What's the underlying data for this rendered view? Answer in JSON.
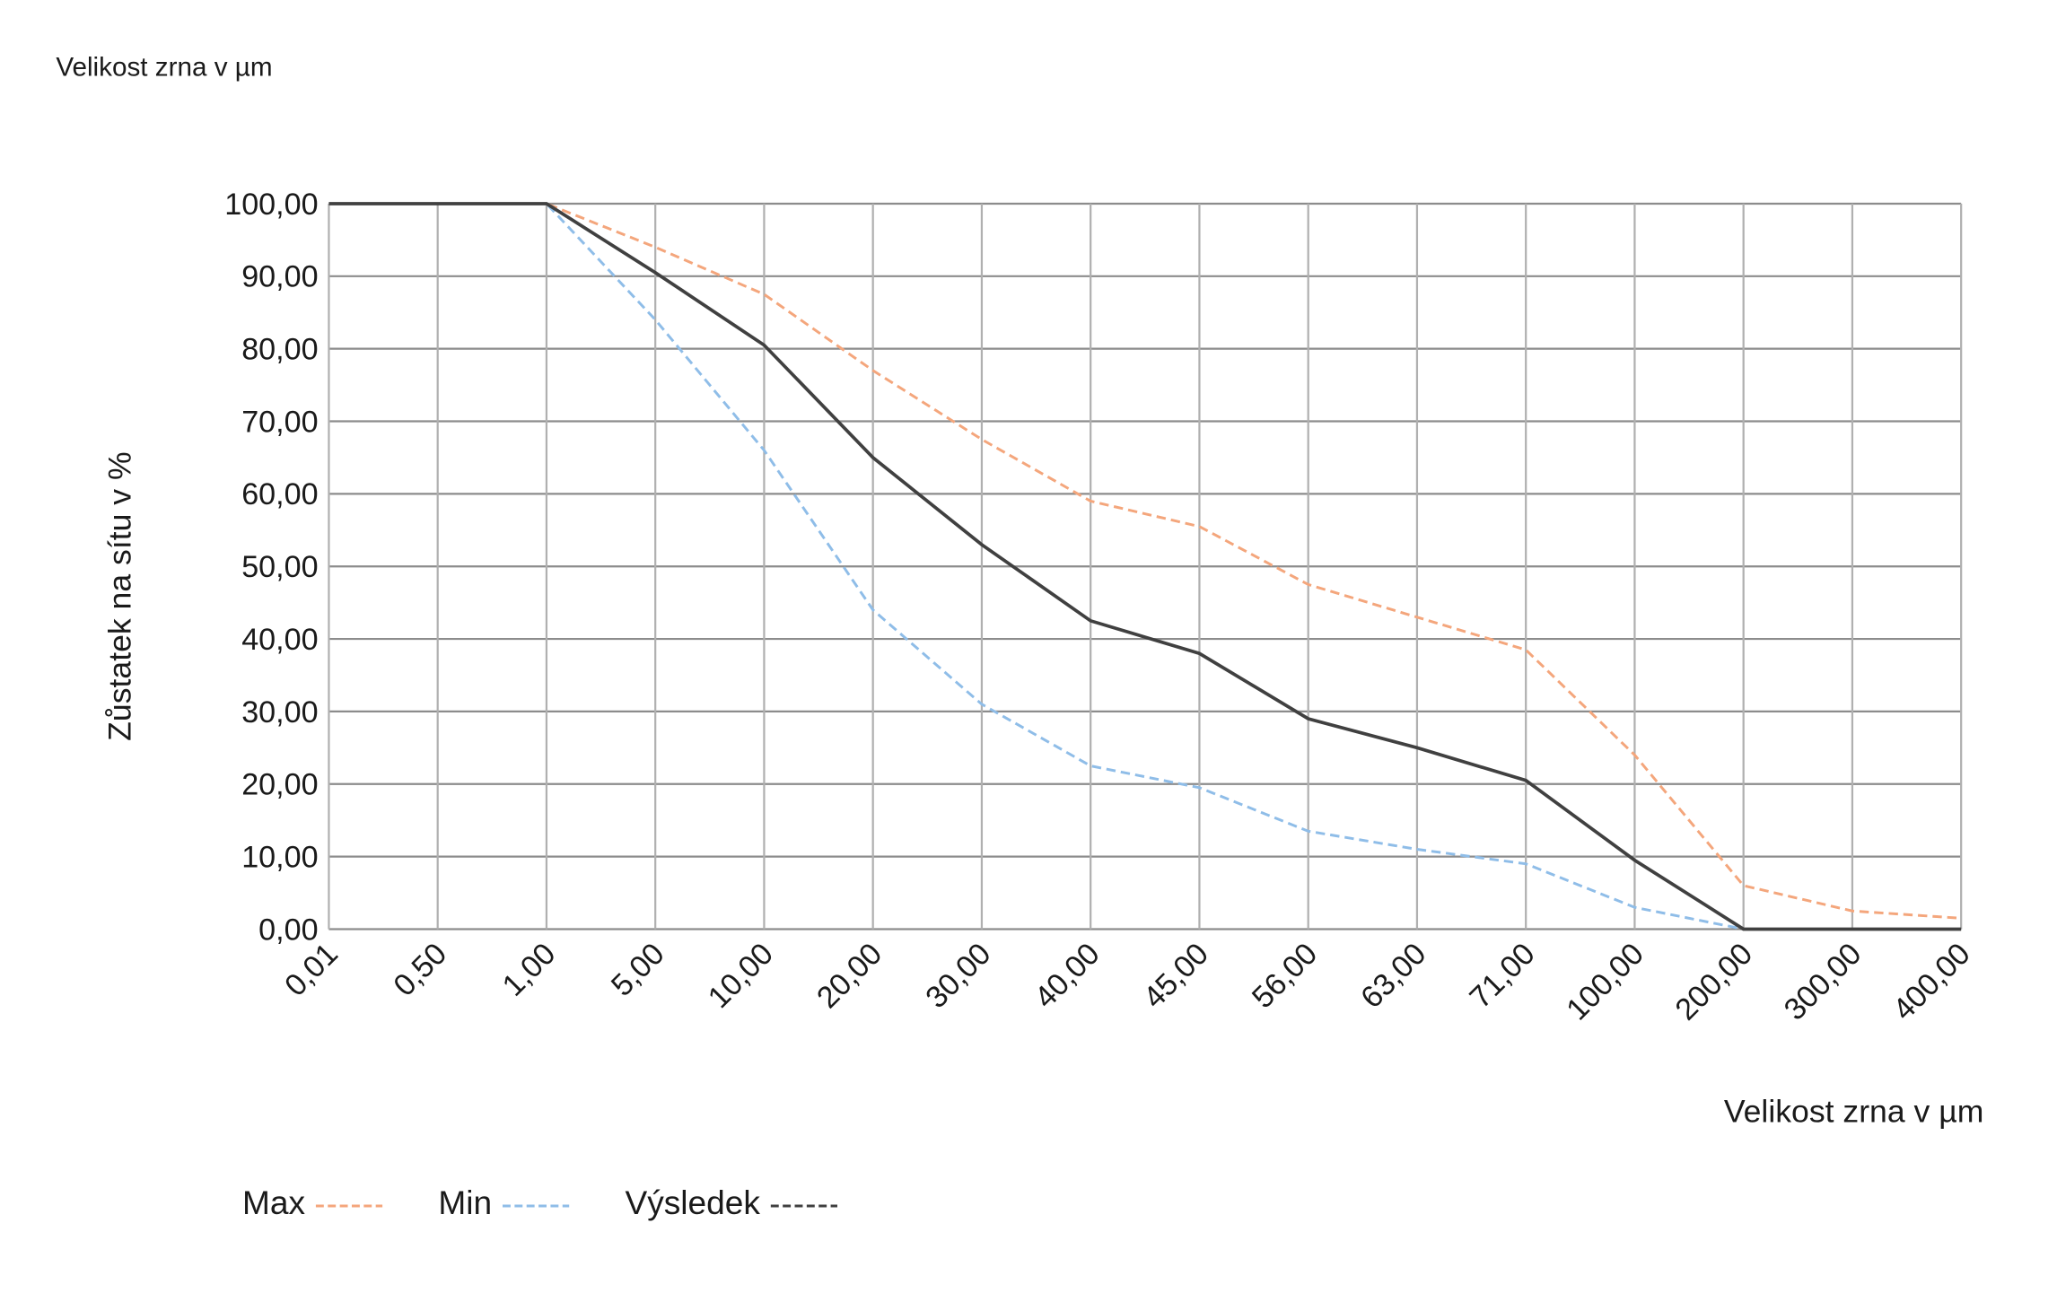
{
  "header_text": "Velikost zrna v µm",
  "chart_data": {
    "type": "line",
    "y_label": "Zůstatek na sítu v %",
    "x_label": "Velikost zrna v µm",
    "categories": [
      "0,01",
      "0,50",
      "1,00",
      "5,00",
      "10,00",
      "20,00",
      "30,00",
      "40,00",
      "45,00",
      "56,00",
      "63,00",
      "71,00",
      "100,00",
      "200,00",
      "300,00",
      "400,00"
    ],
    "series": [
      {
        "name": "Max",
        "color": "#f4a67c",
        "dashed": true,
        "values": [
          100,
          100,
          100,
          94,
          87.5,
          77,
          67.5,
          59,
          55.5,
          47.5,
          43,
          38.5,
          24,
          6,
          2.5,
          1.5
        ]
      },
      {
        "name": "Min",
        "color": "#8fbde8",
        "dashed": true,
        "values": [
          100,
          100,
          100,
          84,
          66,
          44,
          31,
          22.5,
          19.5,
          13.5,
          11,
          9,
          3,
          0,
          0,
          0
        ]
      },
      {
        "name": "Výsledek",
        "color": "#404040",
        "dashed": false,
        "values": [
          100,
          100,
          100,
          90.5,
          80.5,
          65,
          53,
          42.5,
          38,
          29,
          25,
          20.5,
          9.5,
          0,
          0,
          0
        ]
      }
    ],
    "ylim": [
      0,
      100
    ],
    "yticks": [
      {
        "value": 0,
        "label": "0,00"
      },
      {
        "value": 10,
        "label": "10,00"
      },
      {
        "value": 20,
        "label": "20,00"
      },
      {
        "value": 30,
        "label": "30,00"
      },
      {
        "value": 40,
        "label": "40,00"
      },
      {
        "value": 50,
        "label": "50,00"
      },
      {
        "value": 60,
        "label": "60,00"
      },
      {
        "value": 70,
        "label": "70,00"
      },
      {
        "value": 80,
        "label": "80,00"
      },
      {
        "value": 90,
        "label": "90,00"
      },
      {
        "value": 100,
        "label": "100,00"
      }
    ],
    "grid": true
  }
}
